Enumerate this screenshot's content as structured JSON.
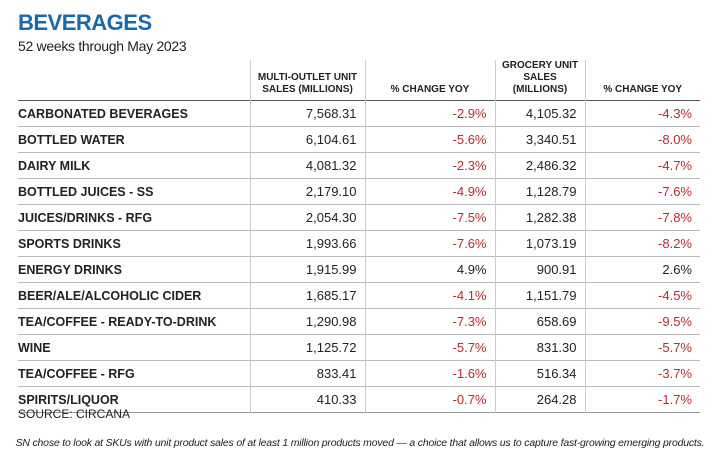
{
  "header": {
    "title": "BEVERAGES",
    "subtitle": "52 weeks through May 2023"
  },
  "table": {
    "columns": [
      "MULTI-OUTLET UNIT SALES (MILLIONS)",
      "% CHANGE YOY",
      "GROCERY UNIT SALES (MILLIONS)",
      "% CHANGE YOY"
    ],
    "rows": [
      [
        "CARBONATED BEVERAGES",
        "7,568.31",
        "-2.9%",
        "4,105.32",
        "-4.3%"
      ],
      [
        "BOTTLED WATER",
        "6,104.61",
        "-5.6%",
        "3,340.51",
        "-8.0%"
      ],
      [
        "DAIRY MILK",
        "4,081.32",
        "-2.3%",
        "2,486.32",
        "-4.7%"
      ],
      [
        "BOTTLED JUICES - SS",
        "2,179.10",
        "-4.9%",
        "1,128.79",
        "-7.6%"
      ],
      [
        "JUICES/DRINKS - RFG",
        "2,054.30",
        "-7.5%",
        "1,282.38",
        "-7.8%"
      ],
      [
        "SPORTS DRINKS",
        "1,993.66",
        "-7.6%",
        "1,073.19",
        "-8.2%"
      ],
      [
        "ENERGY DRINKS",
        "1,915.99",
        "4.9%",
        "900.91",
        "2.6%"
      ],
      [
        "BEER/ALE/ALCOHOLIC CIDER",
        "1,685.17",
        "-4.1%",
        "1,151.79",
        "-4.5%"
      ],
      [
        "TEA/COFFEE - READY-TO-DRINK",
        "1,290.98",
        "-7.3%",
        "658.69",
        "-9.5%"
      ],
      [
        "WINE",
        "1,125.72",
        "-5.7%",
        "831.30",
        "-5.7%"
      ],
      [
        "TEA/COFFEE - RFG",
        "833.41",
        "-1.6%",
        "516.34",
        "-3.7%"
      ],
      [
        "SPIRITS/LIQUOR",
        "410.33",
        "-0.7%",
        "264.28",
        "-1.7%"
      ]
    ]
  },
  "source": "SOURCE: CIRCANA",
  "footnote": "SN chose to look at SKUs with unit product sales of at least 1 million products moved — a choice that allows us to capture fast-growing emerging products."
}
